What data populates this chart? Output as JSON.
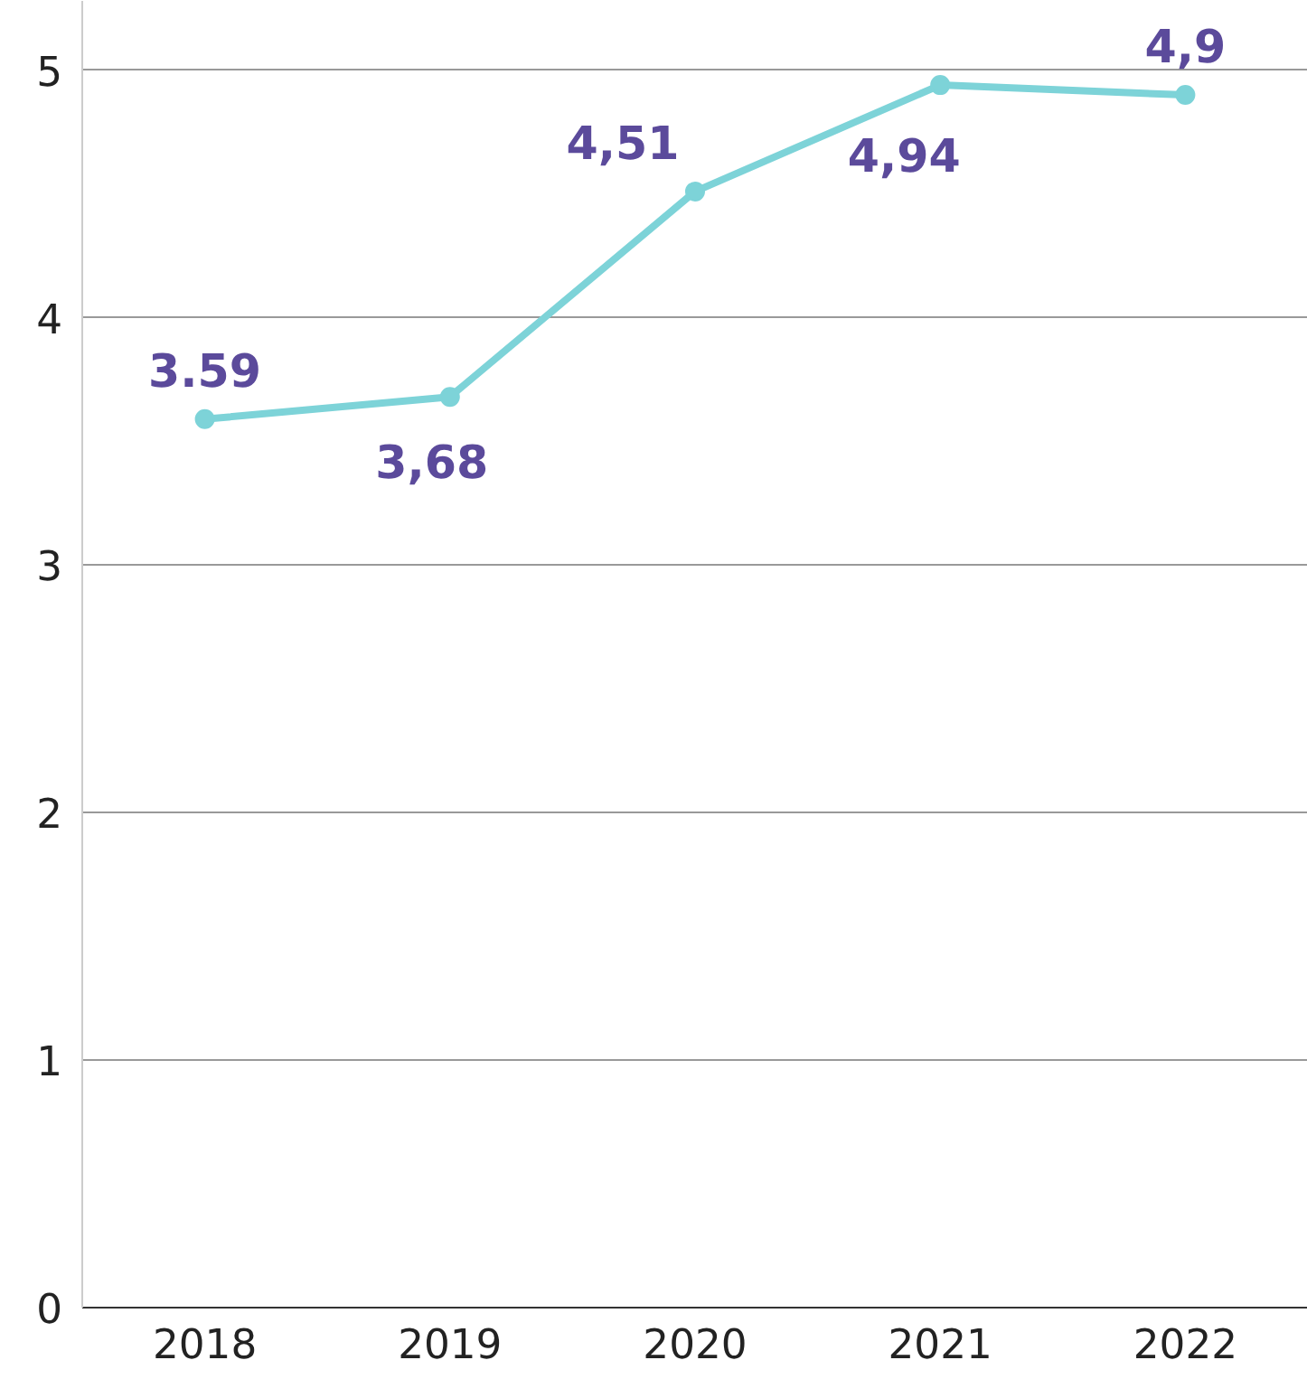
{
  "chart_data": {
    "type": "line",
    "categories": [
      "2018",
      "2019",
      "2020",
      "2021",
      "2022"
    ],
    "series": [
      {
        "color": "#7dd3d8",
        "values": [
          3.59,
          3.68,
          4.51,
          4.94,
          4.9
        ],
        "value_labels": [
          "3.59",
          "3,68",
          "4,51",
          "4,94",
          "4,9"
        ]
      }
    ],
    "ylim": [
      0,
      5.28
    ],
    "yticks": [
      0,
      1,
      2,
      3,
      4,
      5
    ],
    "grid": "y",
    "marker": "circle",
    "line_style": "solid"
  }
}
